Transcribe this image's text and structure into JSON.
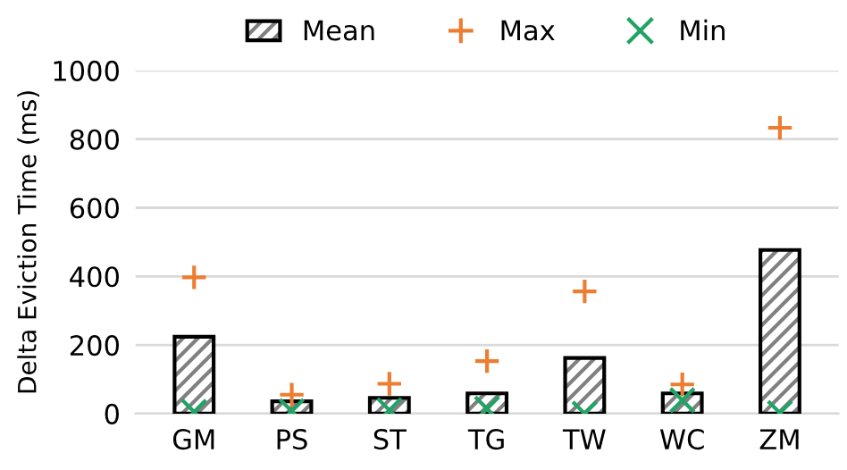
{
  "chart_data": {
    "type": "bar",
    "ylabel": "Delta Eviction Time (ms)",
    "categories": [
      "GM",
      "PS",
      "ST",
      "TG",
      "TW",
      "WC",
      "ZM"
    ],
    "series": [
      {
        "name": "Mean",
        "color": "#000000",
        "values": [
          224,
          36,
          46,
          59,
          162,
          59,
          477
        ]
      },
      {
        "name": "Max",
        "type": "scatter",
        "marker": "cross",
        "color": "#ed7d31",
        "values": [
          397,
          55,
          87,
          153,
          356,
          85,
          833
        ]
      },
      {
        "name": "Min",
        "type": "scatter",
        "marker": "x",
        "color": "#21a366",
        "values": [
          5,
          7,
          10,
          14,
          0,
          39,
          2
        ]
      }
    ],
    "ylim": [
      0,
      1000
    ],
    "yticks": [
      0,
      200,
      400,
      600,
      800,
      1000
    ],
    "grid": "y",
    "legend": "top"
  }
}
